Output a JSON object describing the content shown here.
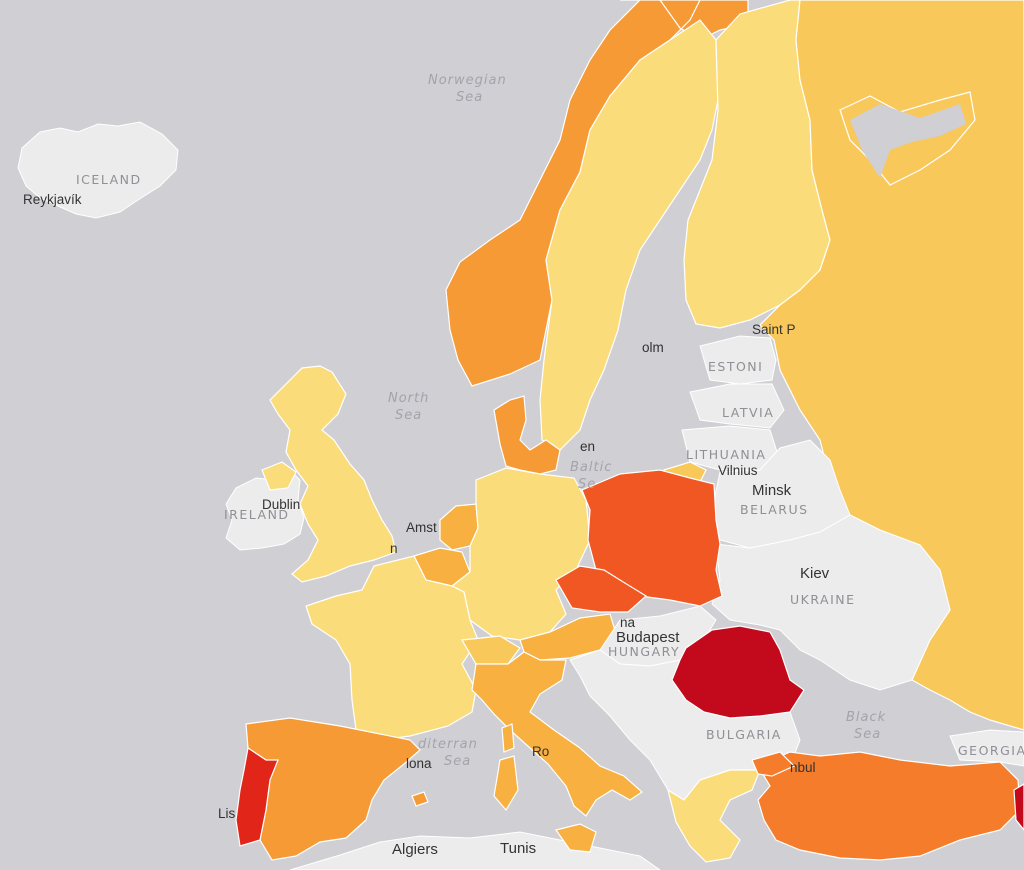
{
  "sea_labels": {
    "norwegian_1": "Norwegian",
    "norwegian_2": "Sea",
    "north_1": "North",
    "north_2": "Sea",
    "baltic_1": "Baltic",
    "baltic_2": "Se",
    "mediterranean_1": "diterran",
    "mediterranean_2": "Sea",
    "black_1": "Black",
    "black_2": "Sea"
  },
  "country_labels": {
    "iceland": "ICELAND",
    "ireland": "IRELAND",
    "estonia": "ESTONI",
    "latvia": "LATVIA",
    "lithuania": "LITHUANIA",
    "belarus": "BELARUS",
    "ukraine": "UKRAINE",
    "hungary": "HUNGARY",
    "bulgaria": "BULGARIA",
    "georgia": "GEORGIA"
  },
  "city_labels": {
    "reykjavik": "Reykjavík",
    "dublin": "Dublin",
    "amsterdam": "Amst",
    "london_frag": "n",
    "saint_p": "Saint P",
    "stockholm": "olm",
    "copenhagen": "en",
    "vilnius": "Vilnius",
    "minsk": "Minsk",
    "kiev": "Kiev",
    "budapest": "Budapest",
    "vienna": "na",
    "barcelona": "lona",
    "rome": "Ro",
    "lisbon": "Lis",
    "algiers": "Algiers",
    "tunis": "Tunis",
    "istanbul": "nbul"
  },
  "colors": {
    "sea": "#cfcfd4",
    "land_nodata": "#ececec",
    "lightest": "#fadd7a",
    "light": "#f9c85a",
    "medium_light": "#f8b041",
    "medium": "#f59a35",
    "medium_dark": "#f47c2a",
    "dark": "#f15722",
    "darker": "#e22519",
    "darkest": "#c30a1d"
  }
}
